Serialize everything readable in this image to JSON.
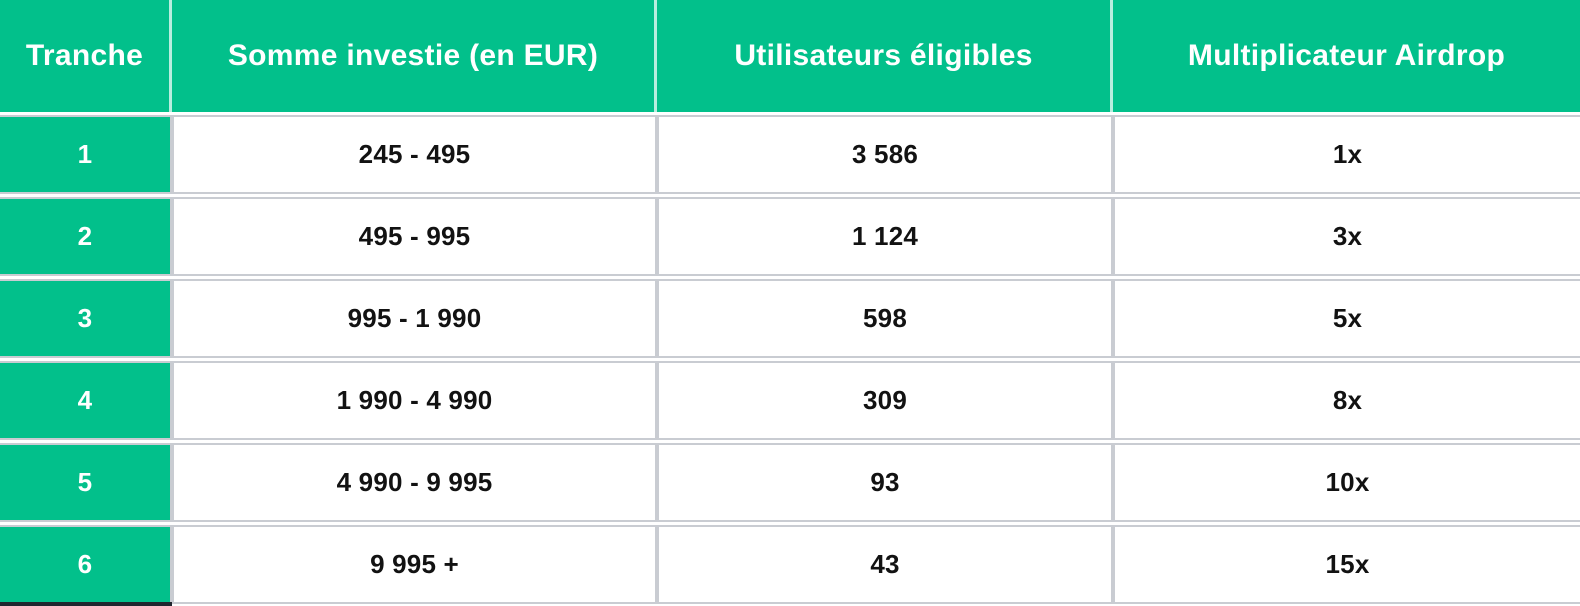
{
  "chart_data": {
    "type": "table",
    "title": "",
    "columns": [
      "Tranche",
      "Somme investie (en EUR)",
      "Utilisateurs éligibles",
      "Multiplicateur Airdrop"
    ],
    "rows": [
      [
        "1",
        "245 - 495",
        "3 586",
        "1x"
      ],
      [
        "2",
        "495 - 995",
        "1 124",
        "3x"
      ],
      [
        "3",
        "995 - 1 990",
        "598",
        "5x"
      ],
      [
        "4",
        "1 990 - 4 990",
        "309",
        "8x"
      ],
      [
        "5",
        "4 990 - 9 995",
        "93",
        "10x"
      ],
      [
        "6",
        "9 995 +",
        "43",
        "15x"
      ]
    ]
  },
  "colors": {
    "header_green": "#02c08b",
    "border_gray": "#c9ccd2",
    "header_text": "#ffffff",
    "body_text": "#121212",
    "bottom_strip_dark": "#20262e"
  }
}
